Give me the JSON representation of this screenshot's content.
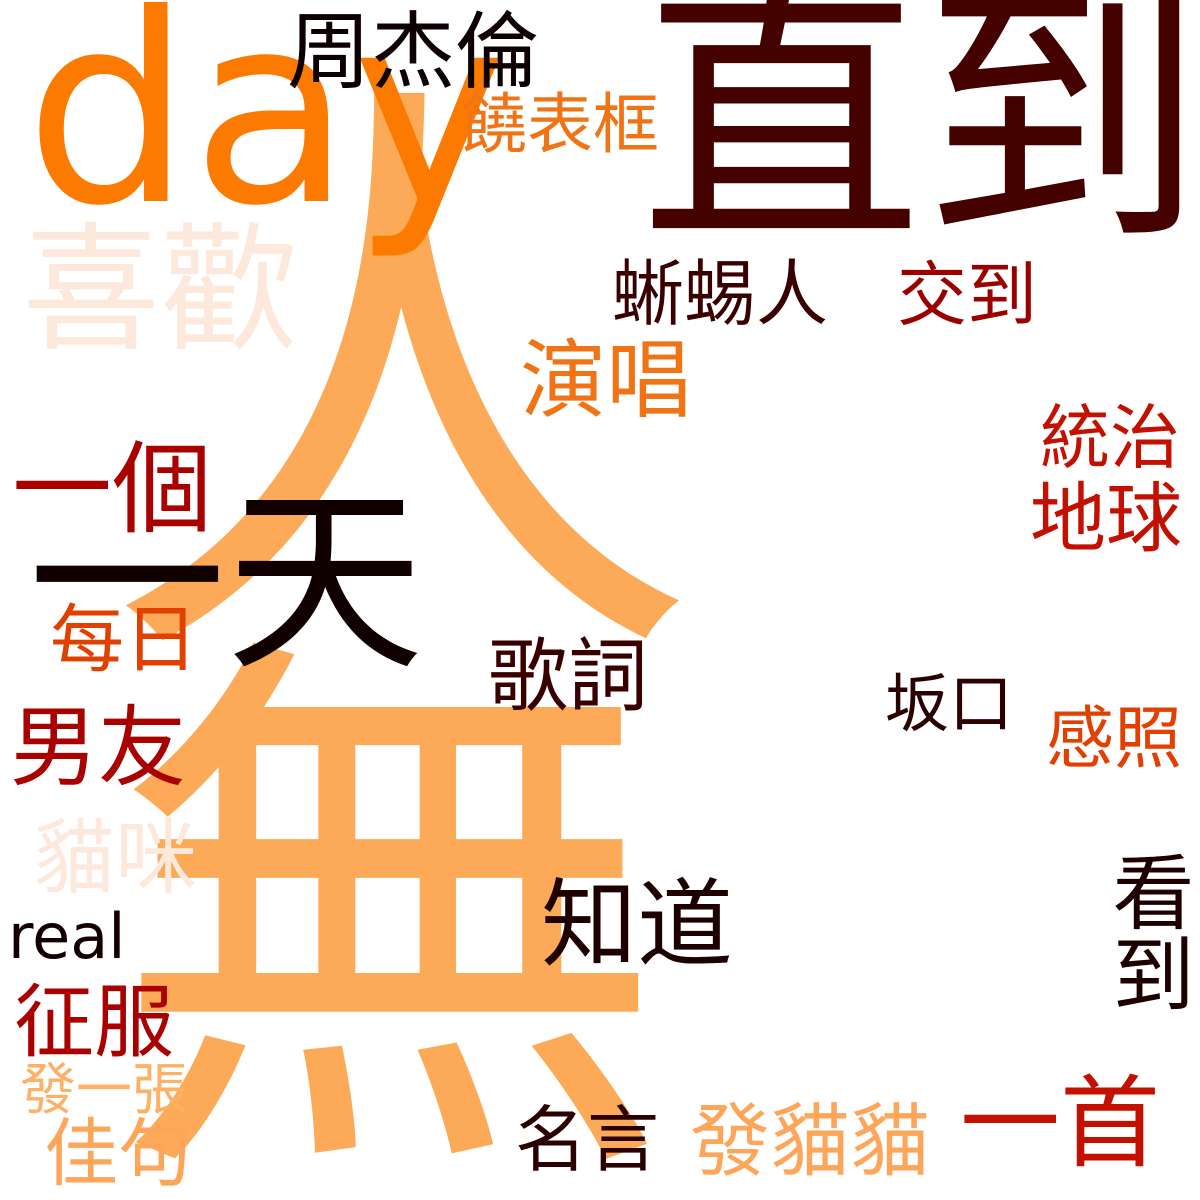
{
  "words": {
    "wuxian": {
      "text": "無",
      "color": "#FDAA58"
    },
    "daren": {
      "text": "人",
      "color": "#FDAA58"
    },
    "zhidao2": {
      "text": "直到",
      "color": "#450000"
    },
    "day": {
      "text": "day",
      "color": "#FD7A00"
    },
    "xihuan": {
      "text": "喜歡",
      "color": "#FDE9DB"
    },
    "jay": {
      "text": "周杰倫",
      "color": "#0D0000"
    },
    "watch": {
      "text": "饒表框",
      "color": "#F07416"
    },
    "lizard": {
      "text": "蜥蜴人",
      "color": "#3A0000"
    },
    "jiao": {
      "text": "交到",
      "color": "#9A0000"
    },
    "sing": {
      "text": "演唱",
      "color": "#F07416"
    },
    "one": {
      "text": "一個",
      "color": "#A90000"
    },
    "day2": {
      "text": "一天",
      "color": "#100000"
    },
    "rule": {
      "text": "統治",
      "color": "#C31000"
    },
    "earth": {
      "text": "地球",
      "color": "#C31000"
    },
    "daily": {
      "text": "每日",
      "color": "#E24000"
    },
    "lyric": {
      "text": "歌詞",
      "color": "#3A0000"
    },
    "saka": {
      "text": "坂口",
      "color": "#2A0000"
    },
    "bf": {
      "text": "男友",
      "color": "#A90000"
    },
    "thank": {
      "text": "感照",
      "color": "#E24000"
    },
    "cat": {
      "text": "貓咪",
      "color": "#FDE9DB"
    },
    "know": {
      "text": "知道",
      "color": "#1E0000"
    },
    "real": {
      "text": "real",
      "color": "#120000"
    },
    "look": {
      "text": "看到",
      "color": "#1E0000"
    },
    "conquer": {
      "text": "征服",
      "color": "#A90000"
    },
    "send1": {
      "text": "發一張",
      "color": "#FDB066"
    },
    "quote": {
      "text": "佳句",
      "color": "#FDA65A"
    },
    "famous": {
      "text": "名言",
      "color": "#2A0000"
    },
    "sendcat": {
      "text": "發貓貓",
      "color": "#FDA65A"
    },
    "song": {
      "text": "一首",
      "color": "#C31000"
    }
  }
}
